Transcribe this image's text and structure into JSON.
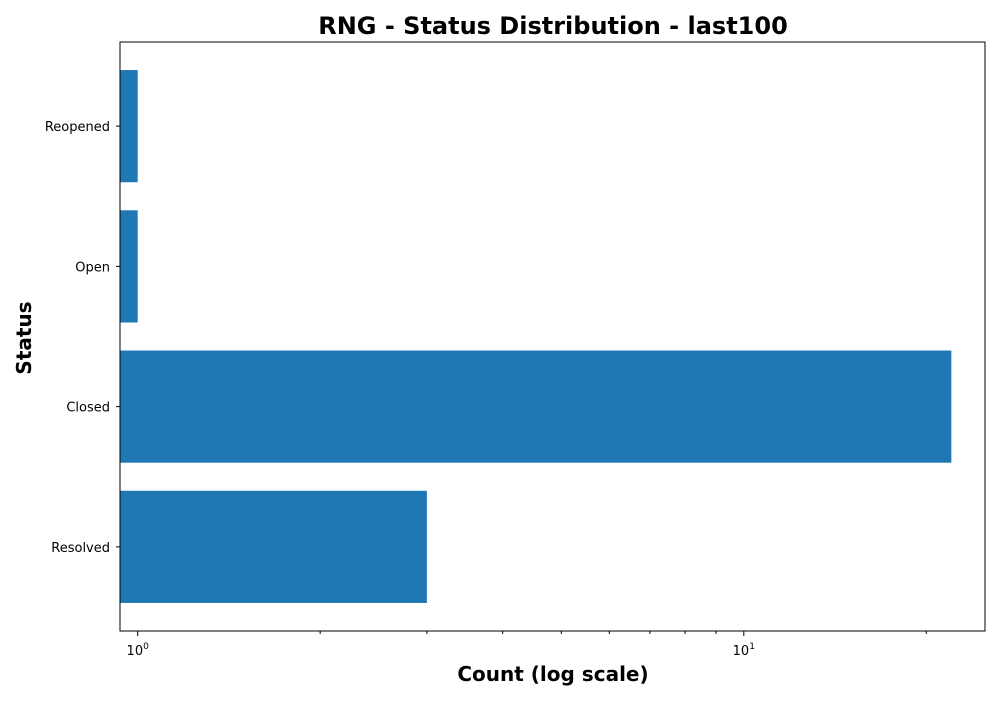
{
  "chart_data": {
    "type": "bar",
    "orientation": "horizontal",
    "title": "RNG - Status Distribution - last100",
    "xlabel": "Count (log scale)",
    "ylabel": "Status",
    "x_scale": "log",
    "xlim": [
      0.935,
      25
    ],
    "categories": [
      "Resolved",
      "Closed",
      "Open",
      "Reopened"
    ],
    "values": [
      3,
      22,
      1,
      1
    ],
    "bar_color": "#1f77b4",
    "grid": false,
    "x_ticks": [
      {
        "base": "10",
        "exponent": "0",
        "value": 1
      },
      {
        "base": "10",
        "exponent": "1",
        "value": 10
      }
    ],
    "x_minor_ticks": [
      2,
      3,
      4,
      5,
      6,
      7,
      8,
      9,
      20
    ]
  }
}
